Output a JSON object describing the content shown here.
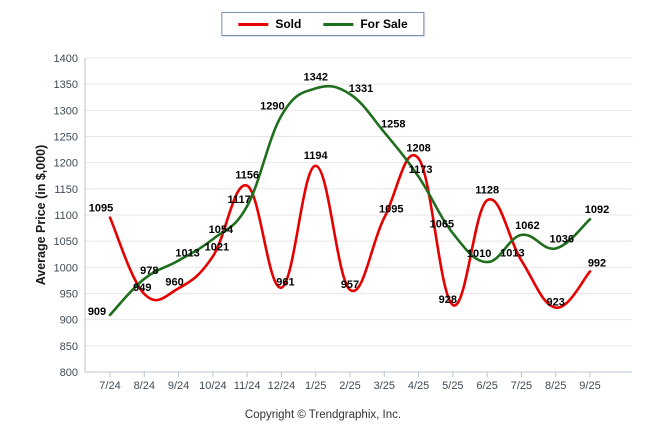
{
  "legend": {
    "items": [
      {
        "label": "Sold",
        "color": "#e60000"
      },
      {
        "label": "For Sale",
        "color": "#1e6e1e"
      }
    ]
  },
  "footer": {
    "copyright": "Copyright © Trendgraphix, Inc."
  },
  "colors": {
    "sold_line": "#e60000",
    "for_sale_line": "#1e6e1e",
    "gridline": "#ece4e4",
    "axis": "#b7c3ce",
    "tick_label": "#3f4a56",
    "point_label": "#000000",
    "axis_title": "#1a1a1a"
  },
  "chart_data": {
    "type": "line",
    "title": "",
    "xlabel": "",
    "ylabel": "Average Price (in $,000)",
    "categories": [
      "7/24",
      "8/24",
      "9/24",
      "10/24",
      "11/24",
      "12/24",
      "1/25",
      "2/25",
      "3/25",
      "4/25",
      "5/25",
      "6/25",
      "7/25",
      "8/25",
      "9/25"
    ],
    "ylim": [
      800,
      1400
    ],
    "ytick_step": 50,
    "grid": true,
    "legend_position": "top-center",
    "series": [
      {
        "name": "Sold",
        "color": "#e60000",
        "values": [
          1095,
          949,
          960,
          1021,
          1156,
          961,
          1194,
          957,
          1095,
          1208,
          928,
          1128,
          1013,
          923,
          992
        ],
        "label_offsets": [
          [
            -9,
            -6
          ],
          [
            -2,
            -3
          ],
          [
            -4,
            -3
          ],
          [
            4,
            -6
          ],
          [
            0,
            -7
          ],
          [
            4,
            -2
          ],
          [
            0,
            -7
          ],
          [
            0,
            -2
          ],
          [
            7,
            -5
          ],
          [
            0,
            -7
          ],
          [
            -5,
            -2
          ],
          [
            0,
            -7
          ],
          [
            -9,
            -4
          ],
          [
            0,
            -2
          ],
          [
            7,
            -5
          ]
        ]
      },
      {
        "name": "For Sale",
        "color": "#1e6e1e",
        "values": [
          909,
          978,
          1013,
          1054,
          1117,
          1290,
          1342,
          1331,
          1258,
          1173,
          1065,
          1010,
          1062,
          1036,
          1092
        ],
        "label_offsets": [
          [
            -13,
            0
          ],
          [
            5,
            -5
          ],
          [
            9,
            -4
          ],
          [
            8,
            -6
          ],
          [
            -8,
            -3
          ],
          [
            -9,
            -6
          ],
          [
            0,
            -8
          ],
          [
            11,
            -2
          ],
          [
            9,
            -5
          ],
          [
            2,
            -4
          ],
          [
            -11,
            -6
          ],
          [
            -8,
            -5
          ],
          [
            6,
            -6
          ],
          [
            6,
            -6
          ],
          [
            7,
            -6
          ]
        ]
      }
    ]
  }
}
